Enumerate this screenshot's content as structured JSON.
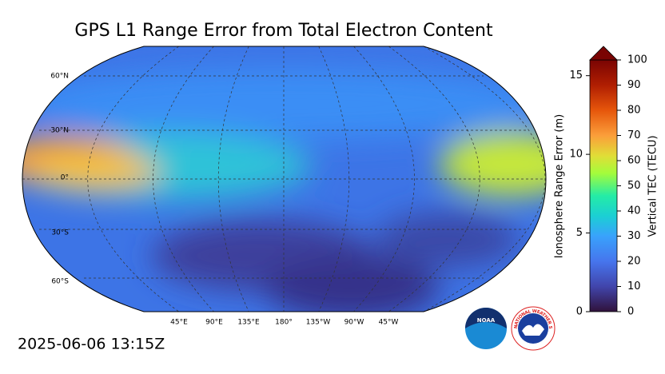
{
  "title": "GPS L1 Range Error from Total Electron Content",
  "timestamp": "2025-06-06 13:15Z",
  "map": {
    "lat_labels": [
      "60°N",
      "30°N",
      "0°",
      "30°S",
      "60°S"
    ],
    "lon_labels": [
      "45°E",
      "90°E",
      "135°E",
      "180°",
      "135°W",
      "90°W",
      "45°W"
    ]
  },
  "colorbar": {
    "left_label": "Ionosphere Range Error (m)",
    "left_lim": [
      0,
      16
    ],
    "left_ticks": [
      0,
      5,
      10,
      15
    ],
    "right_label": "Vertical TEC (TECU)",
    "right_lim": [
      0,
      100
    ],
    "right_ticks": [
      0,
      10,
      20,
      30,
      40,
      50,
      60,
      70,
      80,
      90,
      100
    ]
  },
  "logos": {
    "noaa": "NOAA",
    "nws": "NATIONAL WEATHER SERVICE"
  }
}
